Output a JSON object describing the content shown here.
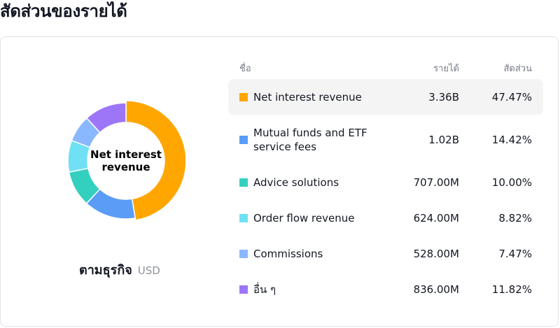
{
  "page": {
    "title": "สัดส่วนของรายได้"
  },
  "chart_data": {
    "type": "pie",
    "center_label": "Net interest revenue",
    "caption": "ตามธุรกิจ",
    "unit": "USD",
    "columns": {
      "name": "ชื่อ",
      "revenue": "รายได้",
      "share": "สัดส่วน"
    },
    "segments": [
      {
        "name": "Net interest revenue",
        "revenue": "3.36B",
        "share": "47.47%",
        "value": 47.47,
        "color": "#ffa600"
      },
      {
        "name": "Mutual funds and ETF service fees",
        "revenue": "1.02B",
        "share": "14.42%",
        "value": 14.42,
        "color": "#5b9cf6"
      },
      {
        "name": "Advice solutions",
        "revenue": "707.00M",
        "share": "10.00%",
        "value": 10.0,
        "color": "#33d0c0"
      },
      {
        "name": "Order flow revenue",
        "revenue": "624.00M",
        "share": "8.82%",
        "value": 8.82,
        "color": "#70e1f5"
      },
      {
        "name": "Commissions",
        "revenue": "528.00M",
        "share": "7.47%",
        "value": 7.47,
        "color": "#8ab8ff"
      },
      {
        "name": "อื่น ๆ",
        "revenue": "836.00M",
        "share": "11.82%",
        "value": 11.82,
        "color": "#9d76f8"
      }
    ],
    "highlighted_index": 0
  }
}
